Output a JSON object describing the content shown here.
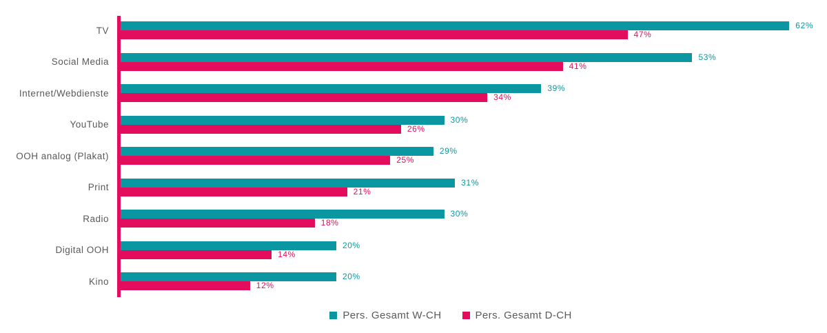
{
  "chart_data": {
    "type": "bar",
    "orientation": "horizontal",
    "title": "",
    "xlabel": "",
    "ylabel": "",
    "xlim": [
      0,
      62
    ],
    "grid": false,
    "legend_position": "bottom",
    "axis_color": "#e40c5c",
    "label_color": "#595959",
    "value_suffix": "%",
    "categories": [
      "TV",
      "Social Media",
      "Internet/Webdienste",
      "YouTube",
      "OOH analog (Plakat)",
      "Print",
      "Radio",
      "Digital OOH",
      "Kino"
    ],
    "series": [
      {
        "name": "Pers. Gesamt W-CH",
        "color": "#0b97a1",
        "values": [
          62,
          53,
          39,
          30,
          29,
          31,
          30,
          20,
          20
        ],
        "labels": [
          "62%",
          "53%",
          "39%",
          "30%",
          "29%",
          "31%",
          "30%",
          "20%",
          "20%"
        ]
      },
      {
        "name": "Pers. Gesamt D-CH",
        "color": "#e40c5c",
        "values": [
          47,
          41,
          34,
          26,
          25,
          21,
          18,
          14,
          12
        ],
        "labels": [
          "47%",
          "41%",
          "34%",
          "26%",
          "25%",
          "21%",
          "18%",
          "14%",
          "12%"
        ]
      }
    ]
  }
}
